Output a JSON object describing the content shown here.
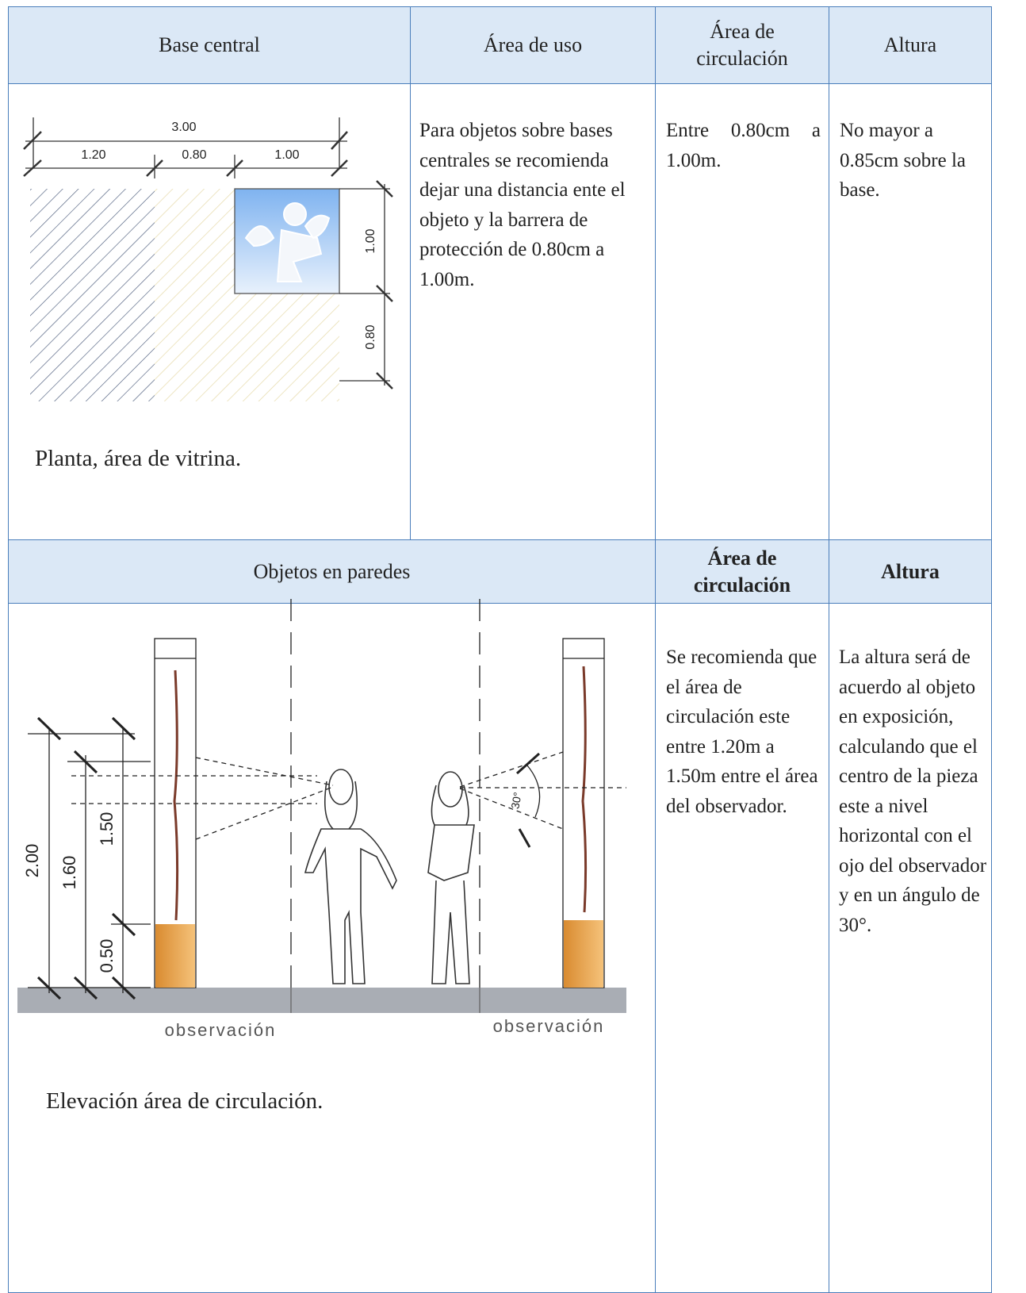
{
  "table": {
    "header1": [
      "Base central",
      "Área de uso",
      "Área de circulación",
      "Altura"
    ],
    "row1": {
      "plan": {
        "dimensions": [
          "3.00",
          "1.20",
          "0.80",
          "1.00",
          "1.00",
          "0.80"
        ],
        "caption": "Planta, área de vitrina."
      },
      "uso": "Para objetos sobre bases centrales se recomienda dejar una distancia ente el objeto y la barrera de protección de 0.80cm a 1.00m.",
      "circulacion": "Entre 0.80cm a 1.00m.",
      "altura": "No mayor a 0.85cm sobre la base."
    },
    "header2": [
      "Objetos en paredes",
      "Área de circulación",
      "Altura"
    ],
    "row2": {
      "elevation": {
        "dimensions": [
          "2.00",
          "1.60",
          "1.50",
          "0.50"
        ],
        "angle": "30°",
        "floor_labels": [
          "observación",
          "observación"
        ],
        "caption": "Elevación área de circulación."
      },
      "circulacion": "Se recomienda que el área de circulación este entre 1.20m a 1.50m entre el área del observador.",
      "altura": "La altura será de acuerdo al objeto en exposición, calculando que el centro de la pieza este a nivel horizontal con el ojo del observador y en un ángulo de 30°."
    }
  }
}
